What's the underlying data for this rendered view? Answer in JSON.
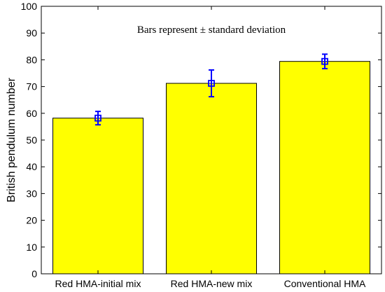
{
  "chart_data": {
    "type": "bar",
    "categories": [
      "Red HMA-initial mix",
      "Red HMA-new mix",
      "Conventional HMA"
    ],
    "values": [
      58.2,
      71.2,
      79.4
    ],
    "error": [
      2.5,
      5.0,
      2.7
    ],
    "ylabel": "British pendulum number",
    "xlabel": "",
    "ylim": [
      0,
      100
    ],
    "yticks": [
      0,
      10,
      20,
      30,
      40,
      50,
      60,
      70,
      80,
      90,
      100
    ],
    "annotation": "Bars represent ± standard deviation",
    "grid": false,
    "colors": {
      "bar_fill": "#ffff00",
      "bar_stroke": "#000000",
      "error_bar": "#0000ff",
      "marker": "#0000ff"
    }
  }
}
